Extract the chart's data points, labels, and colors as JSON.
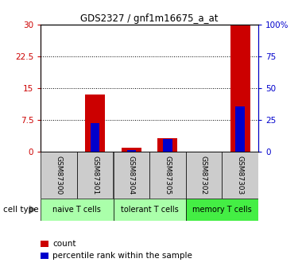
{
  "title": "GDS2327 / gnf1m16675_a_at",
  "samples": [
    "GSM87300",
    "GSM87301",
    "GSM87304",
    "GSM87305",
    "GSM87302",
    "GSM87303"
  ],
  "count_values": [
    0,
    13.5,
    1.0,
    3.2,
    0,
    30
  ],
  "percentile_values": [
    0,
    23.0,
    1.5,
    10.5,
    0,
    36.0
  ],
  "cell_types": [
    {
      "label": "naive T cells",
      "start": 0,
      "end": 2,
      "color": "#aaffaa"
    },
    {
      "label": "tolerant T cells",
      "start": 2,
      "end": 4,
      "color": "#aaffaa"
    },
    {
      "label": "memory T cells",
      "start": 4,
      "end": 6,
      "color": "#44ee44"
    }
  ],
  "ylim_left": [
    0,
    30
  ],
  "ylim_right": [
    0,
    100
  ],
  "yticks_left": [
    0,
    7.5,
    15,
    22.5,
    30
  ],
  "yticks_right": [
    0,
    25,
    50,
    75,
    100
  ],
  "ytick_labels_left": [
    "0",
    "7.5",
    "15",
    "22.5",
    "30"
  ],
  "ytick_labels_right": [
    "0",
    "25",
    "50",
    "75",
    "100%"
  ],
  "left_color": "#cc0000",
  "right_color": "#0000cc",
  "bar_color_count": "#cc0000",
  "bar_color_pct": "#0000cc",
  "background_color": "#ffffff",
  "legend_count": "count",
  "legend_pct": "percentile rank within the sample",
  "cell_type_label": "cell type",
  "sample_box_color": "#cccccc"
}
